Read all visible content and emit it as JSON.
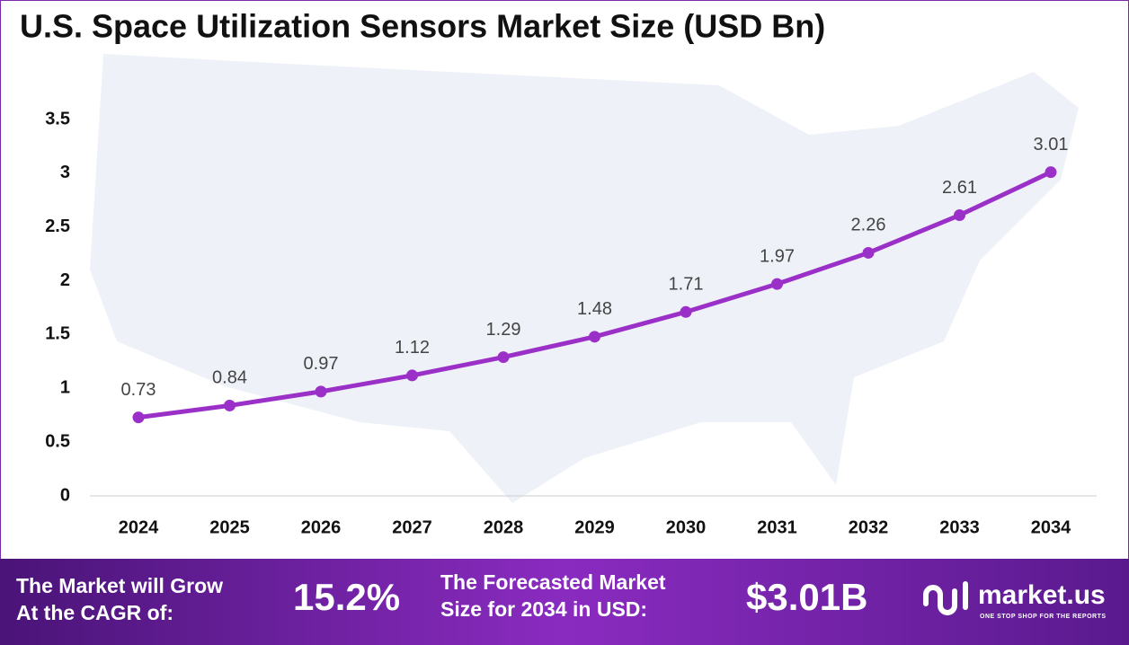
{
  "chart_data": {
    "type": "line",
    "title": "U.S. Space Utilization Sensors Market Size (USD Bn)",
    "categories": [
      "2024",
      "2025",
      "2026",
      "2027",
      "2028",
      "2029",
      "2030",
      "2031",
      "2032",
      "2033",
      "2034"
    ],
    "values": [
      0.73,
      0.84,
      0.97,
      1.12,
      1.29,
      1.48,
      1.71,
      1.97,
      2.26,
      2.61,
      3.01
    ],
    "color": "#9b30c8",
    "ylim": [
      0,
      3.5
    ],
    "yticks": [
      0,
      0.5,
      1,
      1.5,
      2,
      2.5,
      3,
      3.5
    ],
    "grid": false
  },
  "footer": {
    "cagr_label": [
      "The Market will Grow",
      "At the CAGR of:"
    ],
    "cagr_value": "15.2%",
    "forecast_label": [
      "The Forecasted Market",
      "Size for 2034 in USD:"
    ],
    "forecast_value": "$3.01B",
    "brand": "market.us",
    "tagline": "ONE STOP SHOP FOR THE REPORTS"
  }
}
